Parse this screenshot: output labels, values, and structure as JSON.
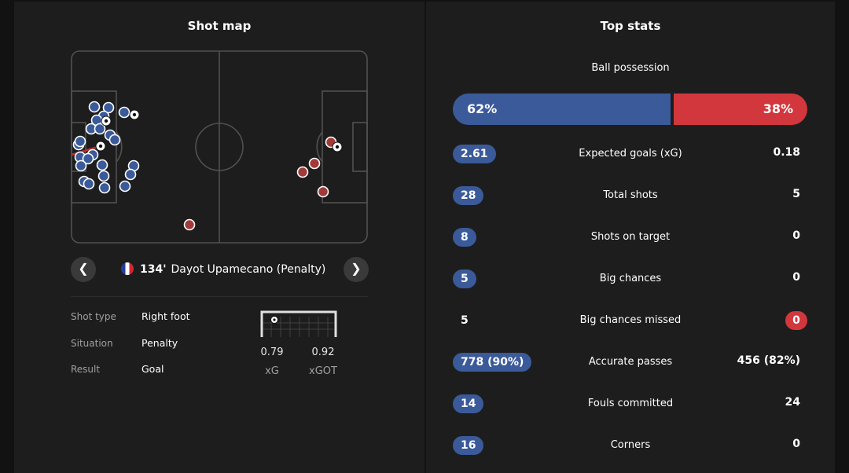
{
  "shot_map": {
    "title": "Shot map",
    "selected_shot": {
      "minute": "134'",
      "player": "Dayot Upamecano (Penalty)",
      "shot_type_label": "Shot type",
      "shot_type": "Right foot",
      "situation_label": "Situation",
      "situation": "Penalty",
      "result_label": "Result",
      "result": "Goal",
      "xg": "0.79",
      "xg_label": "xG",
      "xgot": "0.92",
      "xgot_label": "xGOT"
    },
    "colors": {
      "home": "#3b5a9a",
      "away": "#a33a3a"
    }
  },
  "top_stats": {
    "title": "Top stats",
    "possession": {
      "label": "Ball possession",
      "home": "62%",
      "away": "38%",
      "home_value": 62,
      "away_value": 38
    },
    "rows": [
      {
        "name": "Expected goals (xG)",
        "home": "2.61",
        "away": "0.18",
        "leader": "home"
      },
      {
        "name": "Total shots",
        "home": "28",
        "away": "5",
        "leader": "home"
      },
      {
        "name": "Shots on target",
        "home": "8",
        "away": "0",
        "leader": "home"
      },
      {
        "name": "Big chances",
        "home": "5",
        "away": "0",
        "leader": "home"
      },
      {
        "name": "Big chances missed",
        "home": "5",
        "away": "0",
        "leader": "away"
      },
      {
        "name": "Accurate passes",
        "home": "778 (90%)",
        "away": "456 (82%)",
        "leader": "home"
      },
      {
        "name": "Fouls committed",
        "home": "14",
        "away": "24",
        "leader": "home"
      },
      {
        "name": "Corners",
        "home": "16",
        "away": "0",
        "leader": "home"
      }
    ],
    "colors": {
      "home": "#3b5a9a",
      "away": "#d1373d"
    }
  }
}
